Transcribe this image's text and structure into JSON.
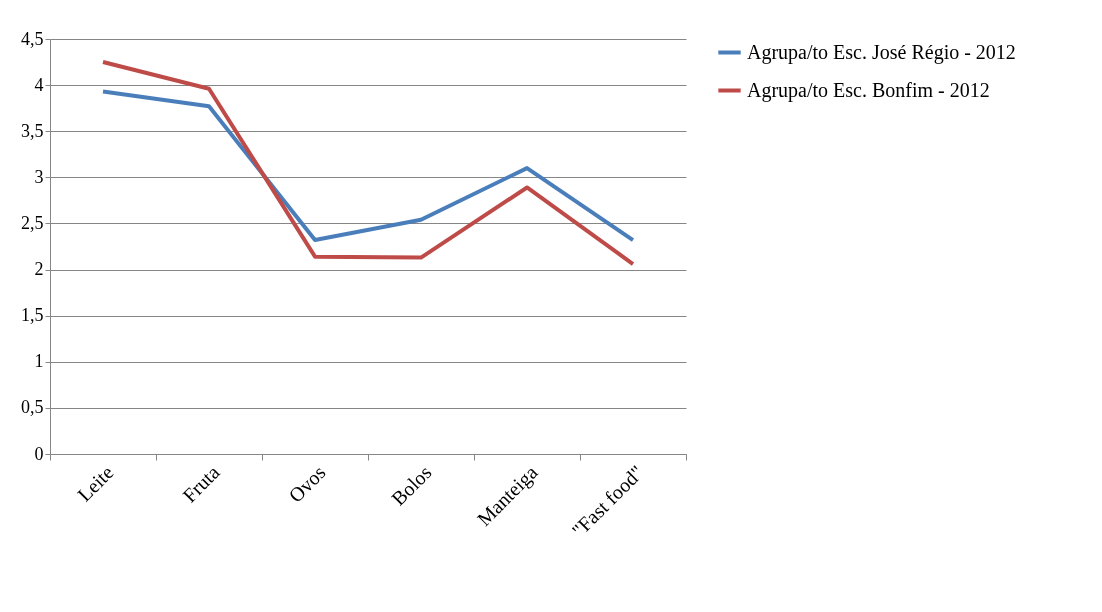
{
  "chart_data": {
    "type": "line",
    "categories": [
      "Leite",
      "Fruta",
      "Ovos",
      "Bolos",
      "Manteiga",
      "\"Fast food\""
    ],
    "series": [
      {
        "name": "Agrupa/to Esc.  José Régio - 2012",
        "color": "#4a7ebb",
        "values": [
          3.93,
          3.77,
          2.32,
          2.54,
          3.1,
          2.32
        ]
      },
      {
        "name": "Agrupa/to Esc. Bonfim - 2012",
        "color": "#be4b48",
        "values": [
          4.25,
          3.96,
          2.14,
          2.13,
          2.89,
          2.06
        ]
      }
    ],
    "ylim": [
      0,
      4.5
    ],
    "yticks": [
      0,
      {
        "value": 0.5,
        "label": "0,5"
      },
      1,
      {
        "value": 1.5,
        "label": "1,5"
      },
      2,
      {
        "value": 2.5,
        "label": "2,5"
      },
      3,
      {
        "value": 3.5,
        "label": "3,5"
      },
      4,
      {
        "value": 4.5,
        "label": "4,5"
      }
    ],
    "grid": "y",
    "legend": "right",
    "marker": "none",
    "line_style": "solid"
  }
}
